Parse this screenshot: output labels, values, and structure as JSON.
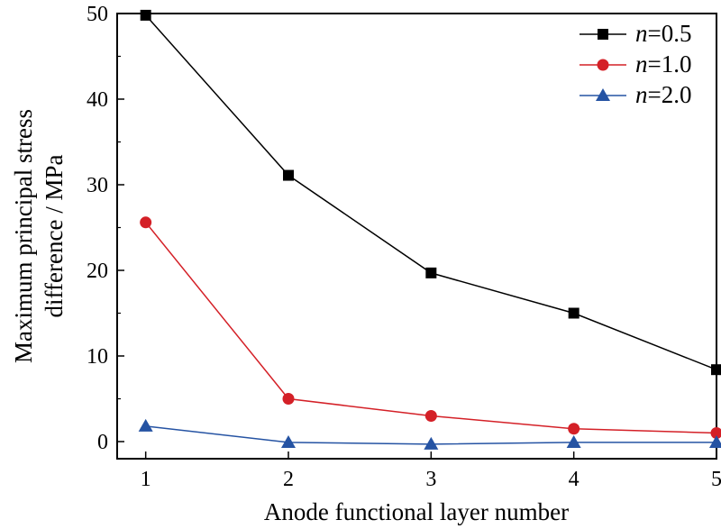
{
  "chart_data": {
    "type": "line",
    "xlabel": "Anode functional layer number",
    "ylabel_lines": [
      "Maximum principal stress",
      "difference / MPa"
    ],
    "x": [
      1,
      2,
      3,
      4,
      5
    ],
    "xlim": [
      0.8,
      5.0
    ],
    "ylim": [
      -2,
      50
    ],
    "xticks": [
      "1",
      "2",
      "3",
      "4",
      "5"
    ],
    "yticks": [
      "0",
      "10",
      "20",
      "30",
      "40",
      "50"
    ],
    "legend_position": "top-right",
    "series": [
      {
        "name": "n=0.5",
        "name_prefix": "n",
        "name_suffix": "=0.5",
        "color": "#000000",
        "marker": "square",
        "values": [
          49.8,
          31.1,
          19.7,
          15.0,
          8.4
        ]
      },
      {
        "name": "n=1.0",
        "name_prefix": "n",
        "name_suffix": "=1.0",
        "color": "#d42027",
        "marker": "circle",
        "values": [
          25.6,
          5.0,
          3.0,
          1.5,
          1.0
        ]
      },
      {
        "name": "n=2.0",
        "name_prefix": "n",
        "name_suffix": "=2.0",
        "color": "#2553a3",
        "marker": "triangle",
        "values": [
          1.8,
          -0.1,
          -0.3,
          -0.1,
          -0.1
        ]
      }
    ]
  }
}
